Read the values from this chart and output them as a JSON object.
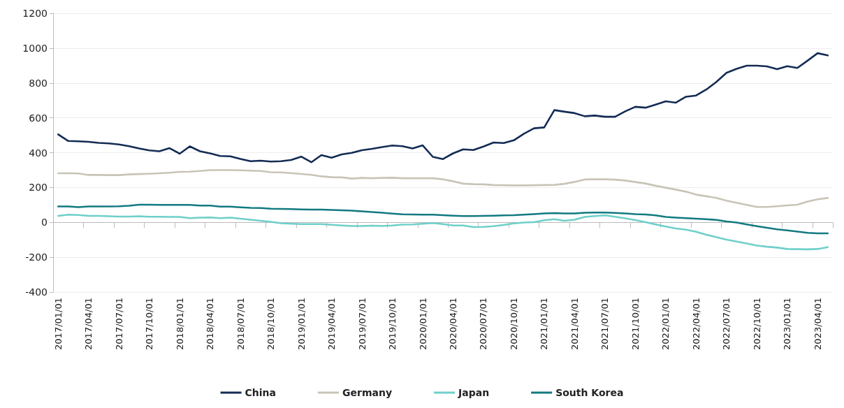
{
  "chart_data": {
    "type": "line",
    "categories": [
      "2017/01/01",
      null,
      null,
      "2017/04/01",
      null,
      null,
      "2017/07/01",
      null,
      null,
      "2017/10/01",
      null,
      null,
      "2018/01/01",
      null,
      null,
      "2018/04/01",
      null,
      null,
      "2018/07/01",
      null,
      null,
      "2018/10/01",
      null,
      null,
      "2019/01/01",
      null,
      null,
      "2019/04/01",
      null,
      null,
      "2019/07/01",
      null,
      null,
      "2019/10/01",
      null,
      null,
      "2020/01/01",
      null,
      null,
      "2020/04/01",
      null,
      null,
      "2020/07/01",
      null,
      null,
      "2020/10/01",
      null,
      null,
      "2021/01/01",
      null,
      null,
      "2021/04/01",
      null,
      null,
      "2021/07/01",
      null,
      null,
      "2021/10/01",
      null,
      null,
      "2022/01/01",
      null,
      null,
      "2022/04/01",
      null,
      null,
      "2022/07/01",
      null,
      null,
      "2022/10/01",
      null,
      null,
      "2023/01/01",
      null,
      null,
      "2023/04/01",
      null
    ],
    "series": [
      {
        "name": "China",
        "color": "#142c54",
        "values": [
          505,
          467,
          465,
          462,
          456,
          453,
          447,
          437,
          424,
          413,
          408,
          426,
          394,
          436,
          408,
          396,
          381,
          379,
          364,
          351,
          354,
          349,
          351,
          358,
          377,
          345,
          386,
          371,
          390,
          399,
          414,
          422,
          432,
          441,
          437,
          424,
          442,
          376,
          363,
          396,
          419,
          415,
          435,
          458,
          455,
          471,
          509,
          540,
          545,
          644,
          635,
          627,
          609,
          613,
          606,
          606,
          637,
          663,
          658,
          676,
          695,
          687,
          721,
          728,
          762,
          806,
          858,
          881,
          899,
          899,
          895,
          879,
          896,
          886,
          928,
          971,
          958
        ]
      },
      {
        "name": "Germany",
        "color": "#c8c4b7",
        "values": [
          282,
          282,
          281,
          272,
          272,
          271,
          271,
          275,
          277,
          279,
          282,
          285,
          290,
          291,
          295,
          300,
          300,
          300,
          299,
          297,
          295,
          288,
          287,
          283,
          278,
          273,
          264,
          259,
          258,
          251,
          255,
          253,
          255,
          256,
          253,
          253,
          253,
          253,
          247,
          236,
          222,
          219,
          218,
          214,
          213,
          212,
          212,
          213,
          214,
          215,
          221,
          232,
          246,
          247,
          247,
          245,
          240,
          231,
          223,
          210,
          199,
          188,
          176,
          159,
          150,
          140,
          124,
          112,
          100,
          88,
          88,
          92,
          97,
          101,
          119,
          132,
          140
        ]
      },
      {
        "name": "Japan",
        "color": "#6fcfca",
        "values": [
          37,
          44,
          42,
          37,
          37,
          35,
          33,
          33,
          35,
          32,
          32,
          31,
          31,
          24,
          27,
          28,
          24,
          27,
          21,
          15,
          9,
          3,
          -5,
          -8,
          -10,
          -10,
          -10,
          -14,
          -18,
          -21,
          -21,
          -19,
          -21,
          -18,
          -13,
          -12,
          -8,
          -4,
          -10,
          -18,
          -18,
          -27,
          -26,
          -22,
          -15,
          -6,
          -1,
          1,
          12,
          18,
          9,
          15,
          31,
          36,
          40,
          32,
          23,
          13,
          1,
          -12,
          -24,
          -35,
          -42,
          -54,
          -71,
          -85,
          -99,
          -110,
          -121,
          -133,
          -140,
          -145,
          -153,
          -154,
          -155,
          -153,
          -142
        ]
      },
      {
        "name": "South Korea",
        "color": "#127a80",
        "values": [
          91,
          91,
          87,
          91,
          91,
          91,
          92,
          95,
          101,
          101,
          100,
          100,
          100,
          100,
          96,
          96,
          90,
          90,
          86,
          83,
          82,
          78,
          77,
          76,
          74,
          73,
          73,
          71,
          69,
          67,
          63,
          59,
          55,
          50,
          46,
          45,
          44,
          44,
          41,
          38,
          36,
          36,
          37,
          38,
          40,
          41,
          44,
          47,
          51,
          53,
          51,
          51,
          55,
          56,
          56,
          54,
          51,
          47,
          45,
          40,
          31,
          27,
          24,
          21,
          18,
          14,
          5,
          -1,
          -12,
          -22,
          -31,
          -40,
          -46,
          -53,
          -60,
          -63,
          -63
        ]
      }
    ],
    "ylim": [
      -400,
      1200
    ],
    "yticks": [
      -400,
      -200,
      0,
      200,
      400,
      600,
      800,
      1000,
      1200
    ],
    "grid": "y",
    "legend": "bottom",
    "marker": "none",
    "line_style": "solid"
  }
}
